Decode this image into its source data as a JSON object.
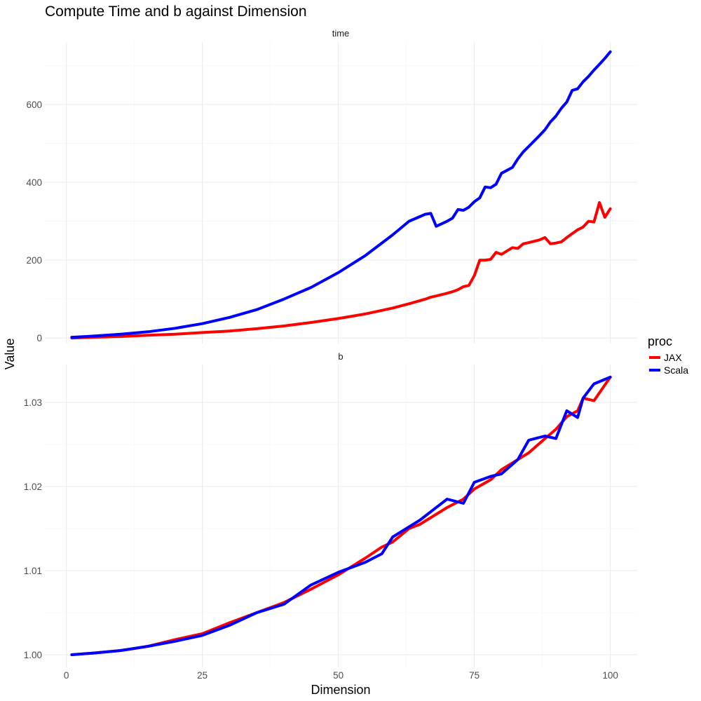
{
  "chart_data": {
    "type": "line",
    "title": "Compute Time and b against Dimension",
    "xlabel": "Dimension",
    "ylabel": "Value",
    "xlim": [
      1,
      100
    ],
    "x_ticks": [
      "0",
      "25",
      "50",
      "75",
      "100"
    ],
    "legend": {
      "title": "proc",
      "position": "right",
      "entries": [
        "JAX",
        "Scala"
      ]
    },
    "colors": {
      "JAX": "#ff0000",
      "Scala": "#0000ff"
    },
    "panels": [
      {
        "strip": "time",
        "ylim": [
          -14,
          760
        ],
        "y_ticks": [
          "0",
          "200",
          "400",
          "600"
        ],
        "x": [
          1,
          5,
          10,
          15,
          20,
          25,
          30,
          35,
          40,
          45,
          50,
          55,
          60,
          63,
          66,
          67,
          68,
          70,
          71,
          72,
          73,
          74,
          75,
          76,
          77,
          78,
          79,
          80,
          82,
          83,
          84,
          85,
          87,
          88,
          89,
          90,
          91,
          92,
          93,
          94,
          95,
          96,
          97,
          98,
          99,
          100
        ],
        "series": [
          {
            "name": "JAX",
            "values": [
              0,
              2,
              4,
              7,
              10,
              14,
              18,
              24,
              31,
              40,
              50,
              62,
              77,
              88,
              100,
              105,
              108,
              115,
              119,
              124,
              132,
              135,
              160,
              200,
              200,
              202,
              220,
              215,
              232,
              230,
              242,
              245,
              252,
              258,
              242,
              244,
              247,
              258,
              268,
              278,
              285,
              300,
              298,
              348,
              310,
              332
            ]
          },
          {
            "name": "Scala",
            "values": [
              2,
              5,
              10,
              16,
              25,
              37,
              53,
              73,
              100,
              130,
              168,
              212,
              265,
              300,
              318,
              320,
              287,
              300,
              308,
              330,
              328,
              336,
              350,
              360,
              388,
              386,
              395,
              423,
              438,
              460,
              478,
              492,
              520,
              535,
              555,
              570,
              590,
              606,
              636,
              640,
              658,
              672,
              688,
              703,
              718,
              735
            ]
          }
        ]
      },
      {
        "strip": "b",
        "ylim": [
          0.9985,
          1.0345
        ],
        "y_ticks": [
          "1.00",
          "1.01",
          "1.02",
          "1.03"
        ],
        "x": [
          1,
          5,
          10,
          15,
          20,
          25,
          30,
          35,
          40,
          45,
          50,
          55,
          58,
          60,
          63,
          65,
          70,
          73,
          75,
          78,
          80,
          83,
          85,
          88,
          90,
          92,
          94,
          95,
          97,
          100
        ],
        "series": [
          {
            "name": "JAX",
            "values": [
              1.0,
              1.0002,
              1.0005,
              1.001,
              1.0018,
              1.0025,
              1.0038,
              1.005,
              1.0062,
              1.0078,
              1.0095,
              1.0115,
              1.0128,
              1.0134,
              1.015,
              1.0155,
              1.0175,
              1.0185,
              1.0197,
              1.0208,
              1.022,
              1.0232,
              1.024,
              1.0257,
              1.0268,
              1.0283,
              1.029,
              1.0305,
              1.0302,
              1.033
            ]
          },
          {
            "name": "Scala",
            "values": [
              1.0,
              1.0002,
              1.0005,
              1.001,
              1.0016,
              1.0023,
              1.0035,
              1.005,
              1.006,
              1.0083,
              1.0098,
              1.011,
              1.012,
              1.014,
              1.0152,
              1.016,
              1.0185,
              1.018,
              1.0205,
              1.0212,
              1.0215,
              1.0232,
              1.0255,
              1.026,
              1.0257,
              1.029,
              1.0282,
              1.0305,
              1.0322,
              1.033
            ]
          }
        ]
      }
    ]
  }
}
